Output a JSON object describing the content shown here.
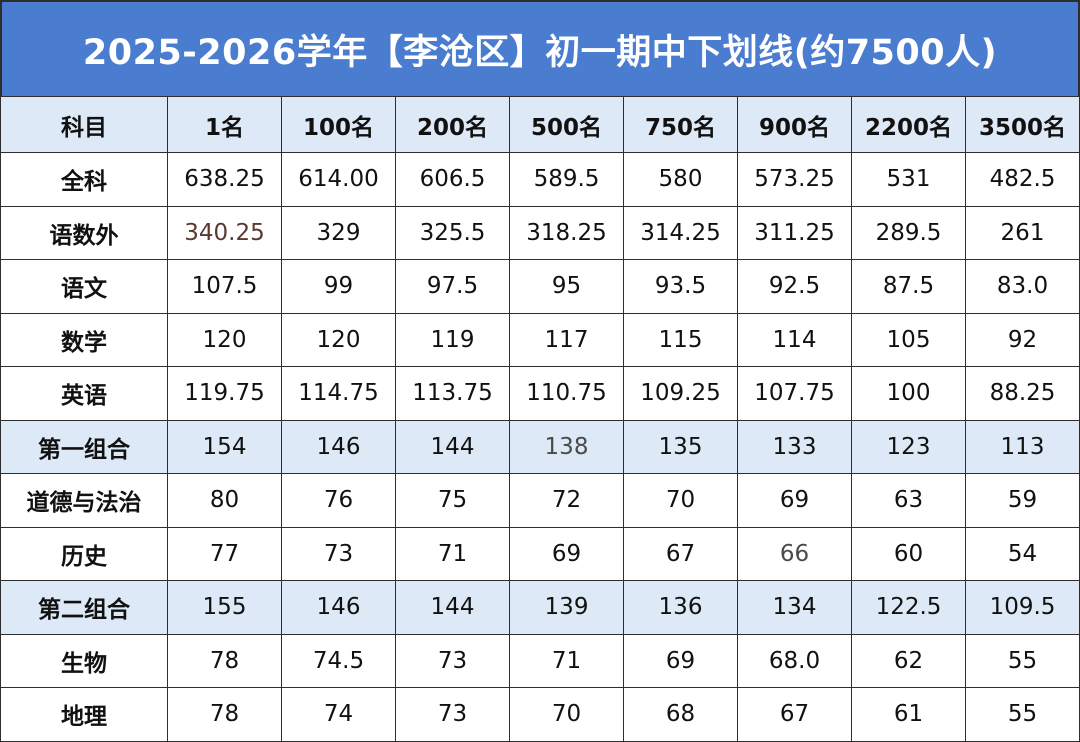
{
  "title": "2025-2026学年【李沧区】初一期中下划线(约7500人)",
  "columns": [
    "科目",
    "1名",
    "100名",
    "200名",
    "500名",
    "750名",
    "900名",
    "2200名",
    "3500名"
  ],
  "rows": [
    {
      "subject": "全科",
      "values": [
        "638.25",
        "614.00",
        "606.5",
        "589.5",
        "580",
        "573.25",
        "531",
        "482.5"
      ],
      "shaded": false
    },
    {
      "subject": "语数外",
      "values": [
        "340.25",
        "329",
        "325.5",
        "318.25",
        "314.25",
        "311.25",
        "289.5",
        "261"
      ],
      "shaded": false
    },
    {
      "subject": "语文",
      "values": [
        "107.5",
        "99",
        "97.5",
        "95",
        "93.5",
        "92.5",
        "87.5",
        "83.0"
      ],
      "shaded": false
    },
    {
      "subject": "数学",
      "values": [
        "120",
        "120",
        "119",
        "117",
        "115",
        "114",
        "105",
        "92"
      ],
      "shaded": false
    },
    {
      "subject": "英语",
      "values": [
        "119.75",
        "114.75",
        "113.75",
        "110.75",
        "109.25",
        "107.75",
        "100",
        "88.25"
      ],
      "shaded": false
    },
    {
      "subject": "第一组合",
      "values": [
        "154",
        "146",
        "144",
        "138",
        "135",
        "133",
        "123",
        "113"
      ],
      "shaded": true
    },
    {
      "subject": "道德与法治",
      "values": [
        "80",
        "76",
        "75",
        "72",
        "70",
        "69",
        "63",
        "59"
      ],
      "shaded": false
    },
    {
      "subject": "历史",
      "values": [
        "77",
        "73",
        "71",
        "69",
        "67",
        "66",
        "60",
        "54"
      ],
      "shaded": false
    },
    {
      "subject": "第二组合",
      "values": [
        "155",
        "146",
        "144",
        "139",
        "136",
        "134",
        "122.5",
        "109.5"
      ],
      "shaded": true
    },
    {
      "subject": "生物",
      "values": [
        "78",
        "74.5",
        "73",
        "71",
        "69",
        "68.0",
        "62",
        "55"
      ],
      "shaded": false
    },
    {
      "subject": "地理",
      "values": [
        "78",
        "74",
        "73",
        "70",
        "68",
        "67",
        "61",
        "55"
      ],
      "shaded": false
    }
  ],
  "colors": {
    "title_bg": "#4a7ccf",
    "title_text": "#ffffff",
    "shaded_bg": "#dde9f6",
    "border": "#2e2e2e"
  }
}
